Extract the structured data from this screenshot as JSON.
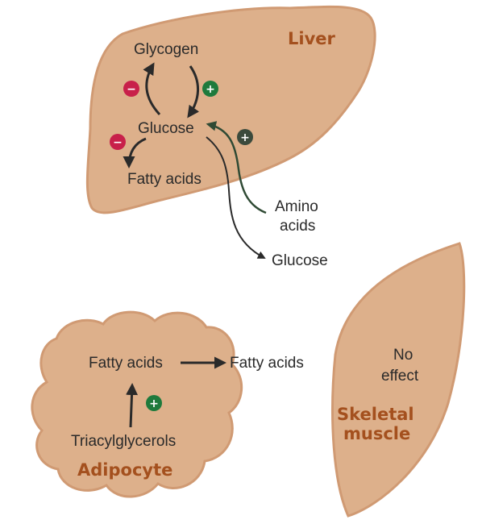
{
  "colors": {
    "organ_fill": "#ddb08b",
    "organ_stroke": "#d09a73",
    "organ_label": "#a4501e",
    "inhibit": "#c8204a",
    "stimulate": "#1e7a3c",
    "stimulate_dark": "#3b4a3c",
    "arrow": "#2a2a2a"
  },
  "liver": {
    "title": "Liver",
    "glycogen": "Glycogen",
    "glucose": "Glucose",
    "fatty_acids": "Fatty acids",
    "amino_acids_line1": "Amino",
    "amino_acids_line2": "acids",
    "glucose_out": "Glucose"
  },
  "adipocyte": {
    "title": "Adipocyte",
    "fatty_acids": "Fatty acids",
    "fatty_acids_out": "Fatty acids",
    "triacylglycerols": "Triacylglycerols"
  },
  "muscle": {
    "title_line1": "Skeletal",
    "title_line2": "muscle",
    "effect_line1": "No",
    "effect_line2": "effect"
  },
  "signs": {
    "minus": "−",
    "plus": "+"
  }
}
